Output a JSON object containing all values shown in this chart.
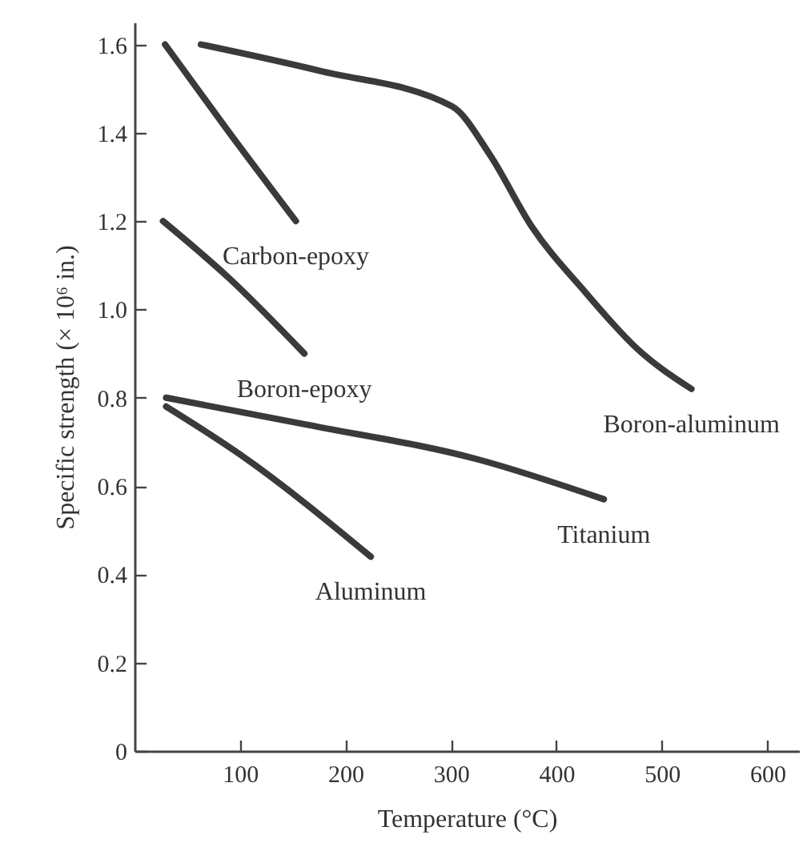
{
  "chart_data": {
    "type": "line",
    "xlabel": "Temperature (°C)",
    "ylabel": "Specific strength (× 10⁶ in.)",
    "xlim": [
      0,
      630
    ],
    "xticks": [
      100,
      200,
      300,
      400,
      500,
      600
    ],
    "ylim": [
      0,
      1.65
    ],
    "yticks": [
      {
        "value": 0,
        "label": "0"
      },
      0.2,
      0.4,
      0.6,
      0.8,
      {
        "value": 1,
        "label": "1.0"
      },
      1.2,
      1.4,
      1.6
    ],
    "grid": false,
    "line_style": "solid",
    "series": [
      {
        "name": "Carbon-epoxy",
        "color": "#3a3a3a",
        "x": [
          29,
          90,
          153
        ],
        "values": [
          1.6,
          1.4,
          1.2
        ]
      },
      {
        "name": "Boron-aluminum",
        "color": "#3a3a3a",
        "x": [
          63,
          176,
          301,
          337,
          376,
          427,
          477,
          528
        ],
        "values": [
          1.6,
          1.54,
          1.46,
          1.35,
          1.19,
          1.04,
          0.91,
          0.82
        ]
      },
      {
        "name": "Boron-epoxy",
        "color": "#3a3a3a",
        "x": [
          27,
          90,
          161
        ],
        "values": [
          1.2,
          1.07,
          0.9
        ]
      },
      {
        "name": "Titanium",
        "color": "#3a3a3a",
        "x": [
          30,
          161,
          326,
          445
        ],
        "values": [
          0.8,
          0.74,
          0.66,
          0.57
        ]
      },
      {
        "name": "Aluminum",
        "color": "#3a3a3a",
        "x": [
          30,
          101,
          224
        ],
        "values": [
          0.78,
          0.67,
          0.44
        ]
      }
    ]
  }
}
